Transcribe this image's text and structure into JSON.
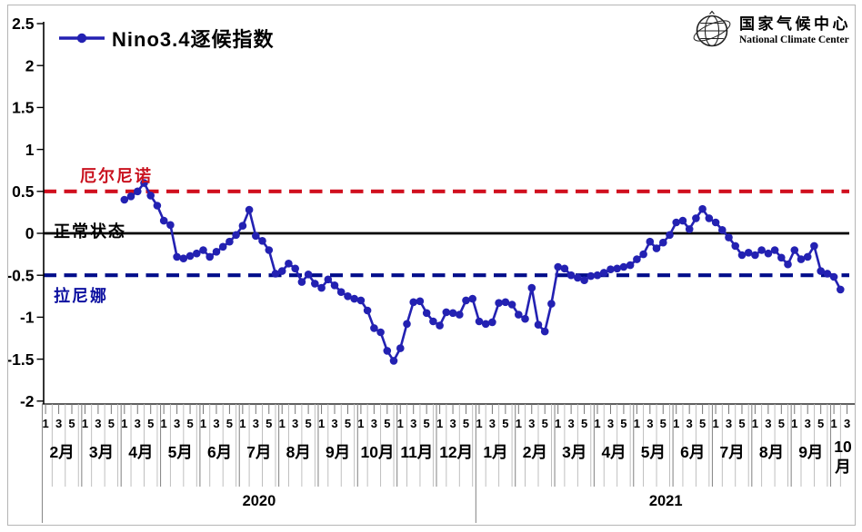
{
  "legend": {
    "label": "Nino3.4逐候指数"
  },
  "logo": {
    "name_cn": "国家气候中心",
    "name_en": "National Climate Center"
  },
  "chart_data": {
    "type": "line",
    "series_name": "Nino3.4逐候指数",
    "ylim": [
      -2,
      2.5
    ],
    "y_ticks": [
      "2.5",
      "2",
      "1.5",
      "1",
      "0.5",
      "0",
      "-0.5",
      "-1",
      "-1.5",
      "-2"
    ],
    "grid": false,
    "legend_position": "top-left",
    "line_color": "#2321b2",
    "reference_lines": [
      {
        "value": 0.5,
        "label": "厄尔尼诺",
        "style": "dashed",
        "color": "#d00f1e"
      },
      {
        "value": 0,
        "label": "正常状态",
        "style": "solid",
        "color": "#000000"
      },
      {
        "value": -0.5,
        "label": "拉尼娜",
        "style": "dashed",
        "color": "#000d8a"
      }
    ],
    "x_axis": {
      "pentads_per_month": 6,
      "pentad_tick_labels": [
        "1",
        "3",
        "5"
      ]
    },
    "years": [
      {
        "label": "2020",
        "months": [
          "2月",
          "3月",
          "4月",
          "5月",
          "6月",
          "7月",
          "8月",
          "9月",
          "10月",
          "11月",
          "12月"
        ]
      },
      {
        "label": "2021",
        "months": [
          "1月",
          "2月",
          "3月",
          "4月",
          "5月",
          "6月",
          "7月",
          "8月",
          "9月",
          "10月"
        ]
      }
    ],
    "series_start": {
      "year": "2020",
      "month": "4月",
      "pentad": 1
    },
    "start_pentad_offset": 12,
    "values": [
      0.4,
      0.44,
      0.5,
      0.6,
      0.45,
      0.33,
      0.15,
      0.1,
      -0.28,
      -0.3,
      -0.27,
      -0.24,
      -0.2,
      -0.28,
      -0.22,
      -0.16,
      -0.1,
      -0.02,
      0.09,
      0.28,
      -0.03,
      -0.09,
      -0.2,
      -0.48,
      -0.45,
      -0.36,
      -0.42,
      -0.58,
      -0.49,
      -0.6,
      -0.65,
      -0.55,
      -0.62,
      -0.7,
      -0.75,
      -0.78,
      -0.8,
      -0.92,
      -1.13,
      -1.18,
      -1.4,
      -1.52,
      -1.37,
      -1.08,
      -0.82,
      -0.81,
      -0.95,
      -1.05,
      -1.1,
      -0.94,
      -0.95,
      -0.97,
      -0.8,
      -0.78,
      -1.05,
      -1.08,
      -1.06,
      -0.83,
      -0.82,
      -0.85,
      -0.97,
      -1.02,
      -0.65,
      -1.09,
      -1.17,
      -0.84,
      -0.4,
      -0.42,
      -0.5,
      -0.53,
      -0.56,
      -0.51,
      -0.5,
      -0.47,
      -0.43,
      -0.42,
      -0.4,
      -0.38,
      -0.31,
      -0.25,
      -0.1,
      -0.18,
      -0.11,
      -0.02,
      0.13,
      0.15,
      0.05,
      0.18,
      0.29,
      0.18,
      0.13,
      0.04,
      -0.05,
      -0.15,
      -0.26,
      -0.23,
      -0.26,
      -0.2,
      -0.24,
      -0.2,
      -0.29,
      -0.37,
      -0.2,
      -0.31,
      -0.28,
      -0.15,
      -0.45,
      -0.48,
      -0.52,
      -0.67
    ]
  }
}
